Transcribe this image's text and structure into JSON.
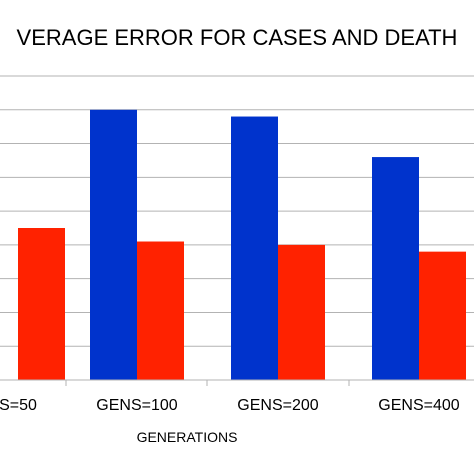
{
  "chart_data": {
    "type": "bar",
    "title": "VERAGE ERROR FOR CASES AND DEATH",
    "xlabel": "GENERATIONS",
    "ylabel": "",
    "categories": [
      "S=50",
      "GENS=100",
      "GENS=200",
      "GENS=400"
    ],
    "series": [
      {
        "values": [
          null,
          8.0,
          7.8,
          6.6
        ],
        "color": "#0033cc"
      },
      {
        "values": [
          4.5,
          4.1,
          4.0,
          3.8
        ],
        "color": "#ff2200"
      }
    ],
    "ylim": [
      0,
      9
    ],
    "grid": true,
    "legend": "none"
  }
}
